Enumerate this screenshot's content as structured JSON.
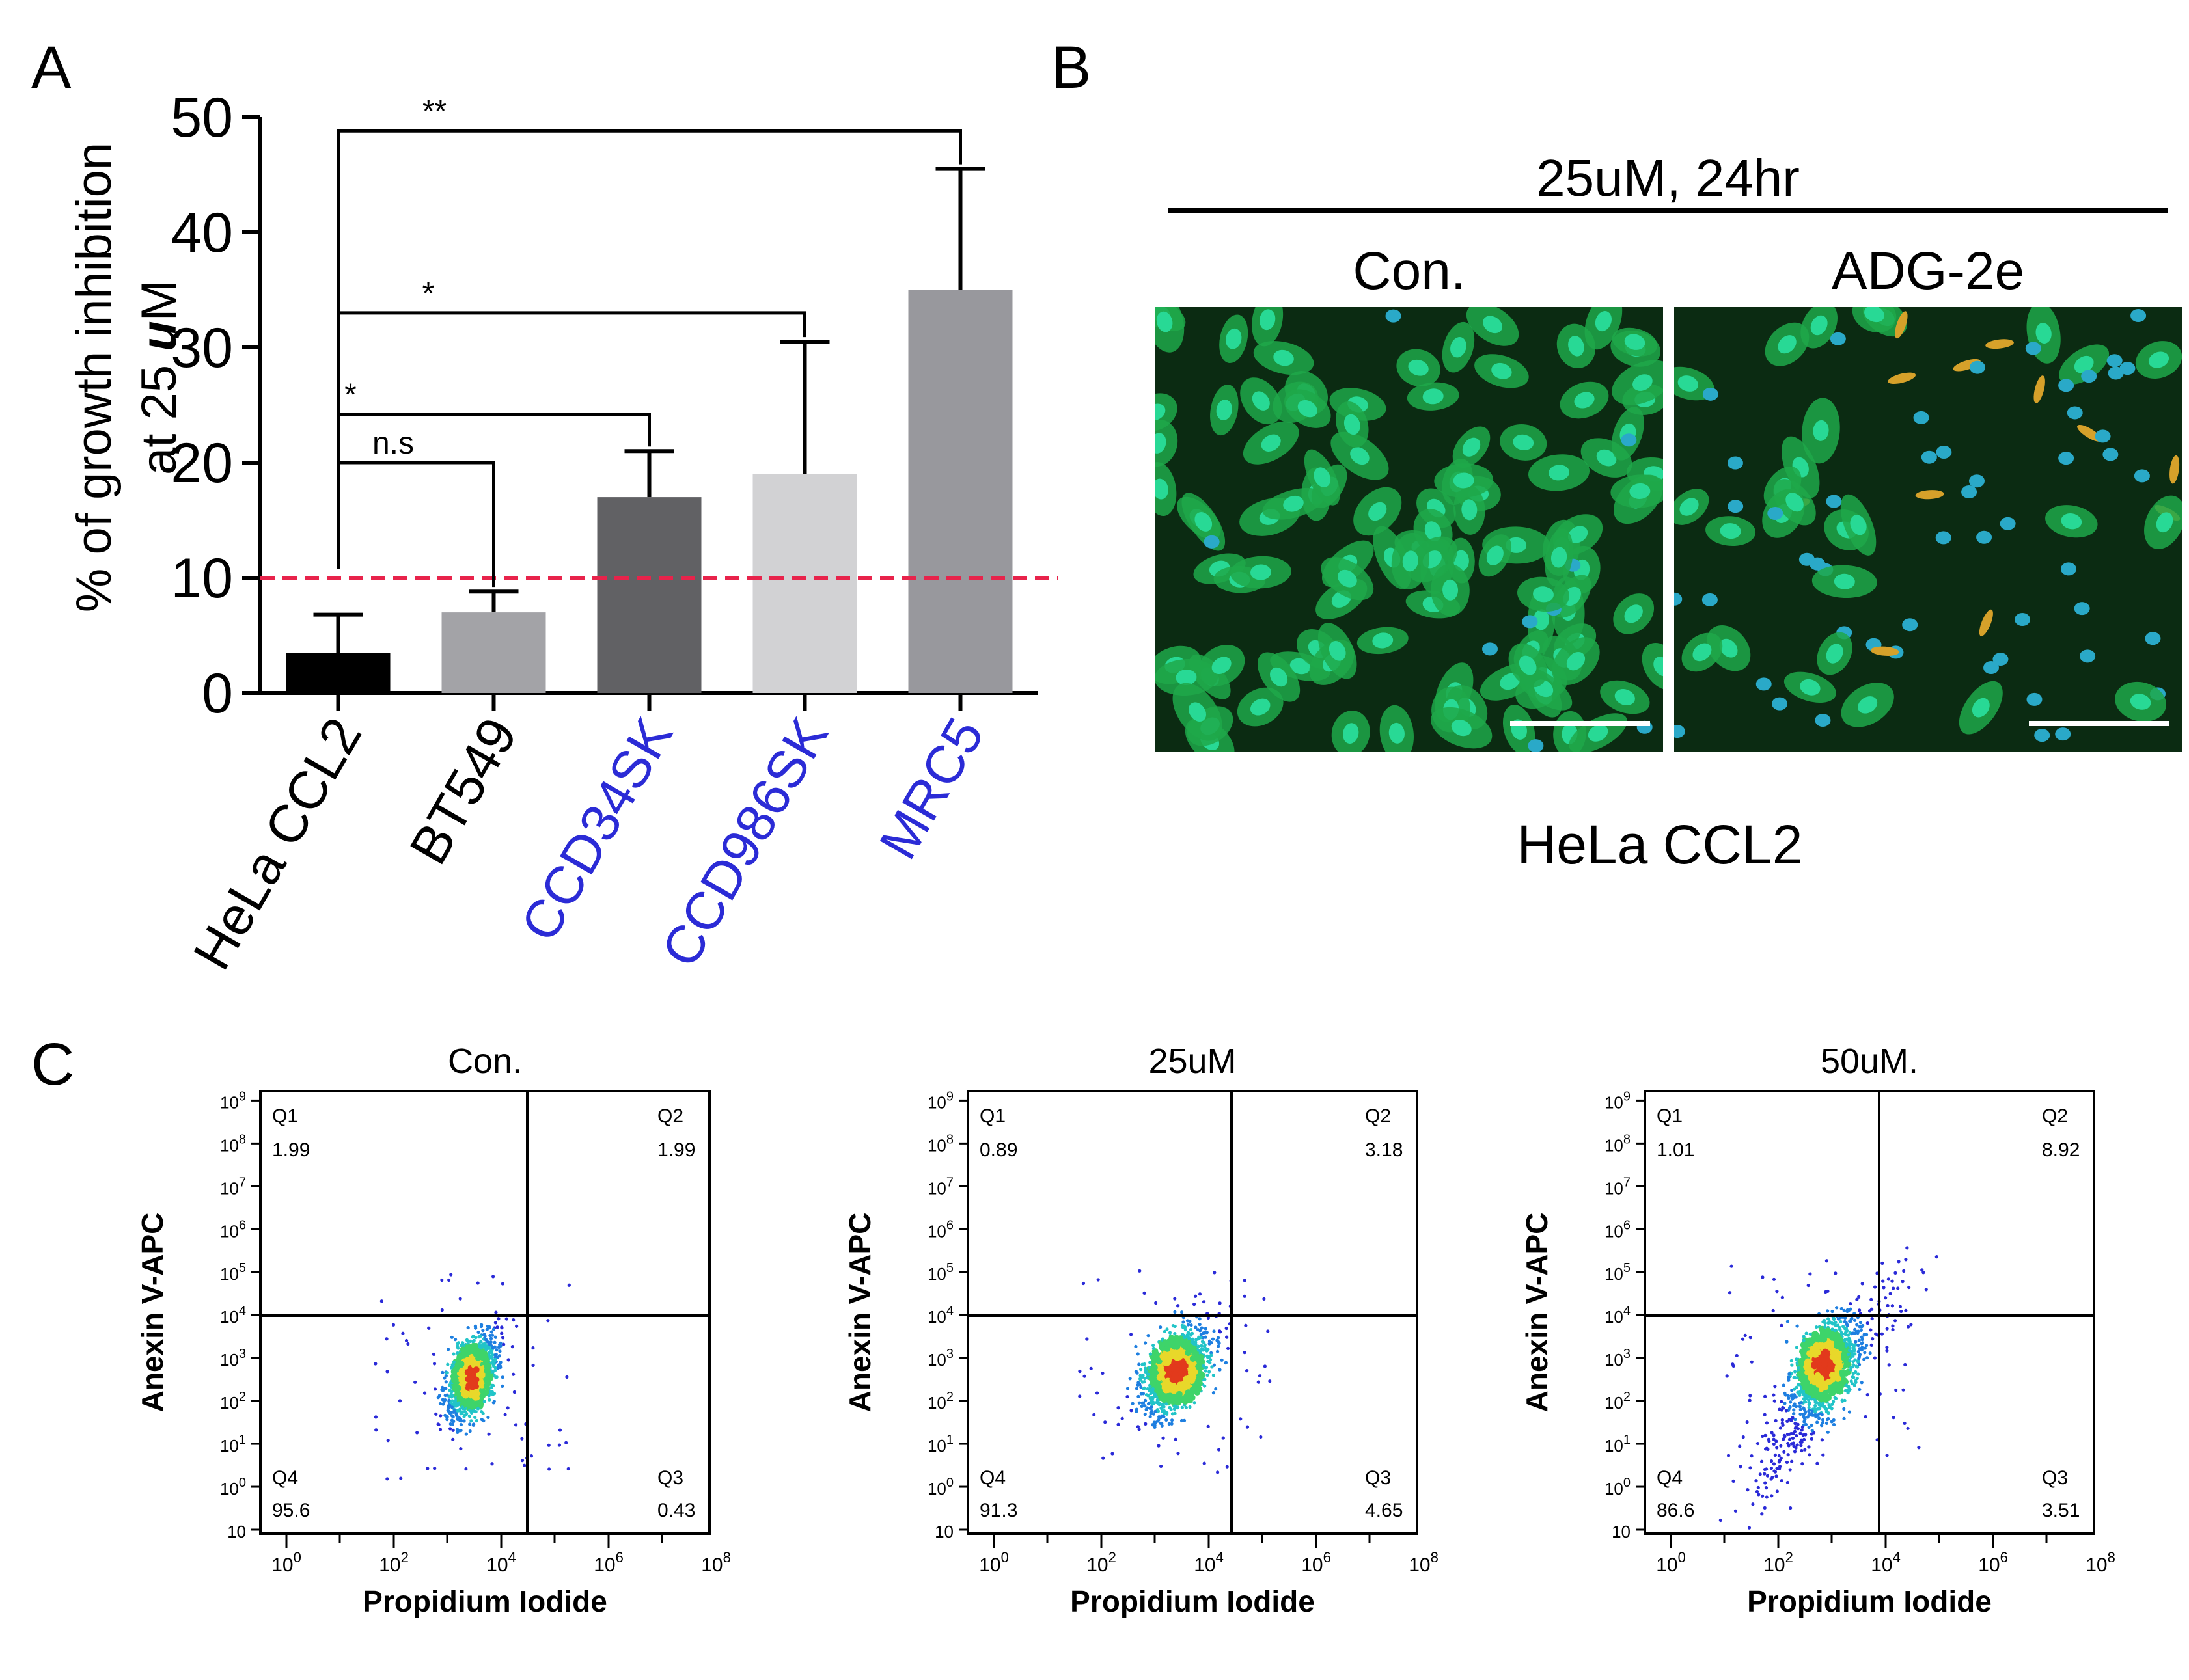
{
  "panels": {
    "a": "A",
    "b": "B",
    "c": "C"
  },
  "chart_data": [
    {
      "type": "bar",
      "panel": "A",
      "ylabel_line1": "% of growth inhibition",
      "ylabel_line2_prefix": "at 25 ",
      "ylabel_line2_unit_bold": "u",
      "ylabel_line2_unit_rest": "M",
      "ylim": [
        0,
        50
      ],
      "yticks": [
        0,
        10,
        20,
        30,
        40,
        50
      ],
      "categories": [
        "HeLa CCL2",
        "BT549",
        "CCD34SK",
        "CCD986SK",
        "MRC5"
      ],
      "category_colors": [
        "#000000",
        "#000000",
        "#2b2bd6",
        "#2b2bd6",
        "#2b2bd6"
      ],
      "values": [
        3.5,
        7.0,
        17.0,
        19.0,
        35.0
      ],
      "errors": [
        3.3,
        1.8,
        4.0,
        11.5,
        10.5
      ],
      "bar_colors": [
        "#000000",
        "#a3a3a7",
        "#616164",
        "#d2d2d4",
        "#98989d"
      ],
      "threshold": {
        "value": 10,
        "color": "#e8234b"
      },
      "significance": [
        {
          "from": 0,
          "to": 1,
          "label": "n.s",
          "y": 20
        },
        {
          "from": 0,
          "to": 2,
          "label": "*",
          "y": 24.2
        },
        {
          "from": 0,
          "to": 3,
          "label": "*",
          "y": 33
        },
        {
          "from": 0,
          "to": 4,
          "label": "**",
          "y": 48.8
        }
      ]
    },
    {
      "type": "scatter",
      "panel": "C",
      "xlabel": "Propidium Iodide",
      "ylabel": "Anexin V-APC",
      "x_ticks": [
        {
          "base": "10",
          "exp": "0"
        },
        {
          "base": "10",
          "exp": "2"
        },
        {
          "base": "10",
          "exp": "4"
        },
        {
          "base": "10",
          "exp": "6"
        },
        {
          "base": "10",
          "exp": "8"
        }
      ],
      "y_ticks": [
        {
          "base": "10",
          "exp": ""
        },
        {
          "base": "10",
          "exp": "0"
        },
        {
          "base": "10",
          "exp": "1"
        },
        {
          "base": "10",
          "exp": "2"
        },
        {
          "base": "10",
          "exp": "3"
        },
        {
          "base": "10",
          "exp": "4"
        },
        {
          "base": "10",
          "exp": "5"
        },
        {
          "base": "10",
          "exp": "6"
        },
        {
          "base": "10",
          "exp": "7"
        },
        {
          "base": "10",
          "exp": "8"
        },
        {
          "base": "10",
          "exp": "9"
        }
      ],
      "plots": [
        {
          "title": "Con.",
          "quadrants": {
            "Q1": "1.99",
            "Q2": "1.99",
            "Q3": "0.43",
            "Q4": "95.6"
          }
        },
        {
          "title": "25uM",
          "quadrants": {
            "Q1": "0.89",
            "Q2": "3.18",
            "Q3": "4.65",
            "Q4": "91.3"
          }
        },
        {
          "title": "50uM.",
          "quadrants": {
            "Q1": "1.01",
            "Q2": "8.92",
            "Q3": "3.51",
            "Q4": "86.6"
          }
        }
      ]
    }
  ],
  "microscopy": {
    "title": "25uM, 24hr",
    "images": [
      {
        "label": "Con."
      },
      {
        "label": "ADG-2e"
      }
    ],
    "caption": "HeLa CCL2"
  }
}
